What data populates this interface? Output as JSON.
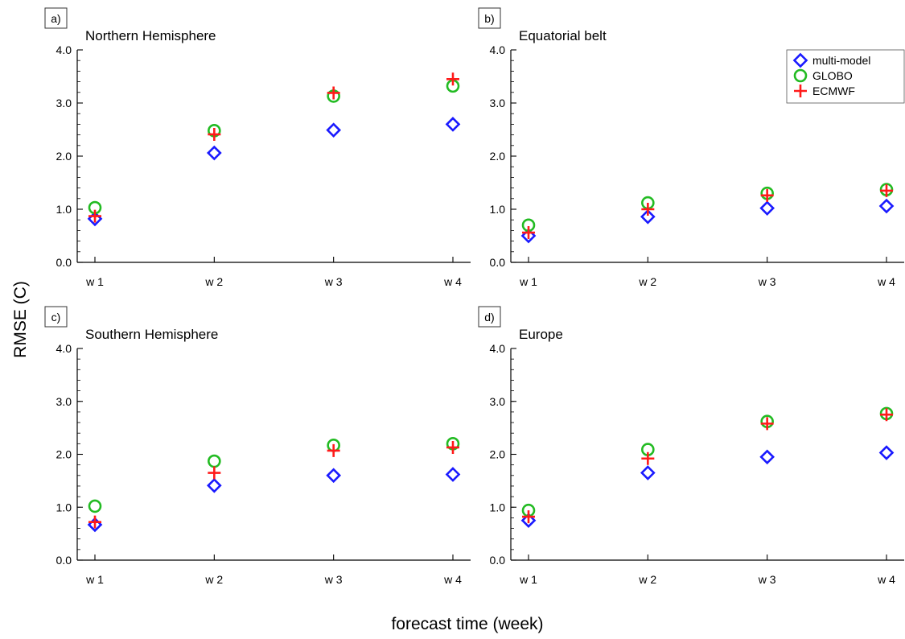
{
  "ylabel": "RMSE (C)",
  "xlabel": "forecast time (week)",
  "legend": {
    "placement": "top-right of panel b",
    "entries": [
      {
        "name": "multi-model",
        "marker": "diamond",
        "color": "#1a1aff"
      },
      {
        "name": "GLOBO",
        "marker": "circle",
        "color": "#22bb22"
      },
      {
        "name": "ECMWF",
        "marker": "plus",
        "color": "#ff1a1a"
      }
    ]
  },
  "chart_data": [
    {
      "type": "scatter",
      "panel": "a)",
      "title": "Northern Hemisphere",
      "categories": [
        "w 1",
        "w 2",
        "w 3",
        "w 4"
      ],
      "ylim": [
        0,
        4
      ],
      "yticks": [
        "0.0",
        "1.0",
        "2.0",
        "3.0",
        "4.0"
      ],
      "series": [
        {
          "name": "multi-model",
          "values": [
            0.82,
            2.06,
            2.49,
            2.6
          ]
        },
        {
          "name": "GLOBO",
          "values": [
            1.03,
            2.48,
            3.13,
            3.32
          ]
        },
        {
          "name": "ECMWF",
          "values": [
            0.87,
            2.41,
            3.19,
            3.45
          ]
        }
      ]
    },
    {
      "type": "scatter",
      "panel": "b)",
      "title": "Equatorial belt",
      "categories": [
        "w 1",
        "w 2",
        "w 3",
        "w 4"
      ],
      "ylim": [
        0,
        4
      ],
      "yticks": [
        "0.0",
        "1.0",
        "2.0",
        "3.0",
        "4.0"
      ],
      "series": [
        {
          "name": "multi-model",
          "values": [
            0.5,
            0.86,
            1.02,
            1.06
          ]
        },
        {
          "name": "GLOBO",
          "values": [
            0.7,
            1.12,
            1.3,
            1.37
          ]
        },
        {
          "name": "ECMWF",
          "values": [
            0.56,
            1.0,
            1.26,
            1.35
          ]
        }
      ]
    },
    {
      "type": "scatter",
      "panel": "c)",
      "title": "Southern Hemisphere",
      "categories": [
        "w 1",
        "w 2",
        "w 3",
        "w 4"
      ],
      "ylim": [
        0,
        4
      ],
      "yticks": [
        "0.0",
        "1.0",
        "2.0",
        "3.0",
        "4.0"
      ],
      "series": [
        {
          "name": "multi-model",
          "values": [
            0.67,
            1.41,
            1.6,
            1.62
          ]
        },
        {
          "name": "GLOBO",
          "values": [
            1.02,
            1.87,
            2.17,
            2.2
          ]
        },
        {
          "name": "ECMWF",
          "values": [
            0.72,
            1.65,
            2.07,
            2.13
          ]
        }
      ]
    },
    {
      "type": "scatter",
      "panel": "d)",
      "title": "Europe",
      "categories": [
        "w 1",
        "w 2",
        "w 3",
        "w 4"
      ],
      "ylim": [
        0,
        4
      ],
      "yticks": [
        "0.0",
        "1.0",
        "2.0",
        "3.0",
        "4.0"
      ],
      "series": [
        {
          "name": "multi-model",
          "values": [
            0.75,
            1.65,
            1.95,
            2.03
          ]
        },
        {
          "name": "GLOBO",
          "values": [
            0.94,
            2.09,
            2.62,
            2.77
          ]
        },
        {
          "name": "ECMWF",
          "values": [
            0.82,
            1.92,
            2.58,
            2.75
          ]
        }
      ]
    }
  ]
}
